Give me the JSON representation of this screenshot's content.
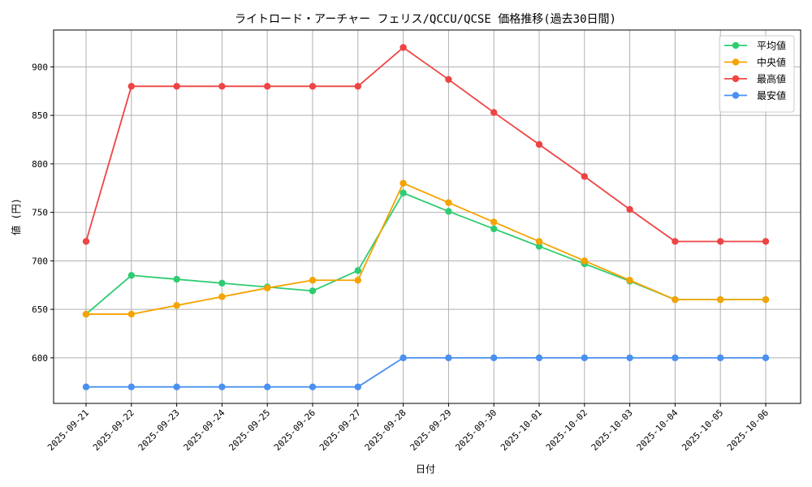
{
  "chart_data": {
    "type": "line",
    "title": "ライトロード・アーチャー フェリス/QCCU/QCSE 価格推移(過去30日間)",
    "xlabel": "日付",
    "ylabel": "値 (円)",
    "categories": [
      "2025-09-21",
      "2025-09-22",
      "2025-09-23",
      "2025-09-24",
      "2025-09-25",
      "2025-09-26",
      "2025-09-27",
      "2025-09-28",
      "2025-09-29",
      "2025-09-30",
      "2025-10-01",
      "2025-10-02",
      "2025-10-03",
      "2025-10-04",
      "2025-10-05",
      "2025-10-06"
    ],
    "ylim": [
      553,
      938
    ],
    "yticks": [
      600,
      650,
      700,
      750,
      800,
      850,
      900
    ],
    "grid": true,
    "legend_position": "upper-right",
    "series": [
      {
        "name": "平均値",
        "color": "#2ecc71",
        "values": [
          645,
          685,
          681,
          677,
          673,
          669,
          690,
          770,
          751,
          733,
          715,
          697,
          679,
          660,
          660,
          660
        ]
      },
      {
        "name": "中央値",
        "color": "#f5a300",
        "values": [
          645,
          645,
          654,
          663,
          672,
          680,
          680,
          780,
          760,
          740,
          720,
          700,
          680,
          660,
          660,
          660
        ]
      },
      {
        "name": "最高値",
        "color": "#ef4444",
        "values": [
          720,
          880,
          880,
          880,
          880,
          880,
          880,
          920,
          887,
          853,
          820,
          787,
          753,
          720,
          720,
          720
        ]
      },
      {
        "name": "最安値",
        "color": "#4a90f0",
        "values": [
          570,
          570,
          570,
          570,
          570,
          570,
          570,
          600,
          600,
          600,
          600,
          600,
          600,
          600,
          600,
          600
        ]
      }
    ]
  }
}
